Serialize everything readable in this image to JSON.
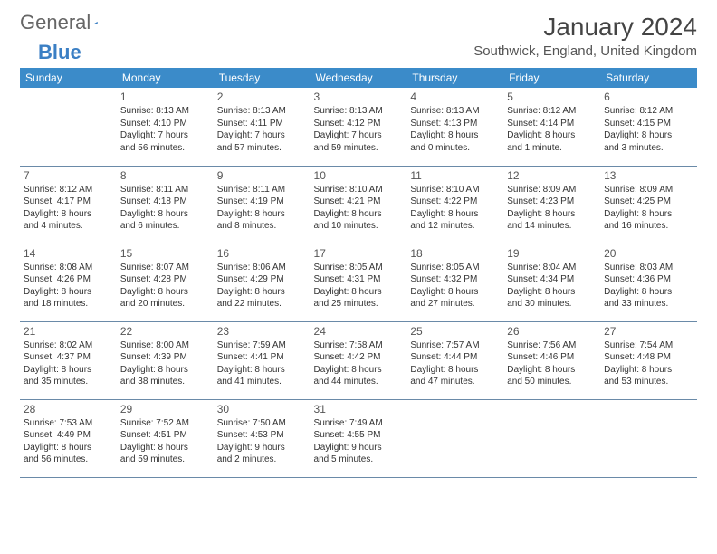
{
  "logo": {
    "textA": "General",
    "textB": "Blue"
  },
  "title": "January 2024",
  "location": "Southwick, England, United Kingdom",
  "colors": {
    "headerBg": "#3b8bc9",
    "headerText": "#ffffff",
    "rowBorder": "#6a8aa8",
    "logoBlue": "#3b7fc4",
    "bodyText": "#333333"
  },
  "dayHeaders": [
    "Sunday",
    "Monday",
    "Tuesday",
    "Wednesday",
    "Thursday",
    "Friday",
    "Saturday"
  ],
  "weeks": [
    [
      null,
      {
        "n": "1",
        "sr": "Sunrise: 8:13 AM",
        "ss": "Sunset: 4:10 PM",
        "d1": "Daylight: 7 hours",
        "d2": "and 56 minutes."
      },
      {
        "n": "2",
        "sr": "Sunrise: 8:13 AM",
        "ss": "Sunset: 4:11 PM",
        "d1": "Daylight: 7 hours",
        "d2": "and 57 minutes."
      },
      {
        "n": "3",
        "sr": "Sunrise: 8:13 AM",
        "ss": "Sunset: 4:12 PM",
        "d1": "Daylight: 7 hours",
        "d2": "and 59 minutes."
      },
      {
        "n": "4",
        "sr": "Sunrise: 8:13 AM",
        "ss": "Sunset: 4:13 PM",
        "d1": "Daylight: 8 hours",
        "d2": "and 0 minutes."
      },
      {
        "n": "5",
        "sr": "Sunrise: 8:12 AM",
        "ss": "Sunset: 4:14 PM",
        "d1": "Daylight: 8 hours",
        "d2": "and 1 minute."
      },
      {
        "n": "6",
        "sr": "Sunrise: 8:12 AM",
        "ss": "Sunset: 4:15 PM",
        "d1": "Daylight: 8 hours",
        "d2": "and 3 minutes."
      }
    ],
    [
      {
        "n": "7",
        "sr": "Sunrise: 8:12 AM",
        "ss": "Sunset: 4:17 PM",
        "d1": "Daylight: 8 hours",
        "d2": "and 4 minutes."
      },
      {
        "n": "8",
        "sr": "Sunrise: 8:11 AM",
        "ss": "Sunset: 4:18 PM",
        "d1": "Daylight: 8 hours",
        "d2": "and 6 minutes."
      },
      {
        "n": "9",
        "sr": "Sunrise: 8:11 AM",
        "ss": "Sunset: 4:19 PM",
        "d1": "Daylight: 8 hours",
        "d2": "and 8 minutes."
      },
      {
        "n": "10",
        "sr": "Sunrise: 8:10 AM",
        "ss": "Sunset: 4:21 PM",
        "d1": "Daylight: 8 hours",
        "d2": "and 10 minutes."
      },
      {
        "n": "11",
        "sr": "Sunrise: 8:10 AM",
        "ss": "Sunset: 4:22 PM",
        "d1": "Daylight: 8 hours",
        "d2": "and 12 minutes."
      },
      {
        "n": "12",
        "sr": "Sunrise: 8:09 AM",
        "ss": "Sunset: 4:23 PM",
        "d1": "Daylight: 8 hours",
        "d2": "and 14 minutes."
      },
      {
        "n": "13",
        "sr": "Sunrise: 8:09 AM",
        "ss": "Sunset: 4:25 PM",
        "d1": "Daylight: 8 hours",
        "d2": "and 16 minutes."
      }
    ],
    [
      {
        "n": "14",
        "sr": "Sunrise: 8:08 AM",
        "ss": "Sunset: 4:26 PM",
        "d1": "Daylight: 8 hours",
        "d2": "and 18 minutes."
      },
      {
        "n": "15",
        "sr": "Sunrise: 8:07 AM",
        "ss": "Sunset: 4:28 PM",
        "d1": "Daylight: 8 hours",
        "d2": "and 20 minutes."
      },
      {
        "n": "16",
        "sr": "Sunrise: 8:06 AM",
        "ss": "Sunset: 4:29 PM",
        "d1": "Daylight: 8 hours",
        "d2": "and 22 minutes."
      },
      {
        "n": "17",
        "sr": "Sunrise: 8:05 AM",
        "ss": "Sunset: 4:31 PM",
        "d1": "Daylight: 8 hours",
        "d2": "and 25 minutes."
      },
      {
        "n": "18",
        "sr": "Sunrise: 8:05 AM",
        "ss": "Sunset: 4:32 PM",
        "d1": "Daylight: 8 hours",
        "d2": "and 27 minutes."
      },
      {
        "n": "19",
        "sr": "Sunrise: 8:04 AM",
        "ss": "Sunset: 4:34 PM",
        "d1": "Daylight: 8 hours",
        "d2": "and 30 minutes."
      },
      {
        "n": "20",
        "sr": "Sunrise: 8:03 AM",
        "ss": "Sunset: 4:36 PM",
        "d1": "Daylight: 8 hours",
        "d2": "and 33 minutes."
      }
    ],
    [
      {
        "n": "21",
        "sr": "Sunrise: 8:02 AM",
        "ss": "Sunset: 4:37 PM",
        "d1": "Daylight: 8 hours",
        "d2": "and 35 minutes."
      },
      {
        "n": "22",
        "sr": "Sunrise: 8:00 AM",
        "ss": "Sunset: 4:39 PM",
        "d1": "Daylight: 8 hours",
        "d2": "and 38 minutes."
      },
      {
        "n": "23",
        "sr": "Sunrise: 7:59 AM",
        "ss": "Sunset: 4:41 PM",
        "d1": "Daylight: 8 hours",
        "d2": "and 41 minutes."
      },
      {
        "n": "24",
        "sr": "Sunrise: 7:58 AM",
        "ss": "Sunset: 4:42 PM",
        "d1": "Daylight: 8 hours",
        "d2": "and 44 minutes."
      },
      {
        "n": "25",
        "sr": "Sunrise: 7:57 AM",
        "ss": "Sunset: 4:44 PM",
        "d1": "Daylight: 8 hours",
        "d2": "and 47 minutes."
      },
      {
        "n": "26",
        "sr": "Sunrise: 7:56 AM",
        "ss": "Sunset: 4:46 PM",
        "d1": "Daylight: 8 hours",
        "d2": "and 50 minutes."
      },
      {
        "n": "27",
        "sr": "Sunrise: 7:54 AM",
        "ss": "Sunset: 4:48 PM",
        "d1": "Daylight: 8 hours",
        "d2": "and 53 minutes."
      }
    ],
    [
      {
        "n": "28",
        "sr": "Sunrise: 7:53 AM",
        "ss": "Sunset: 4:49 PM",
        "d1": "Daylight: 8 hours",
        "d2": "and 56 minutes."
      },
      {
        "n": "29",
        "sr": "Sunrise: 7:52 AM",
        "ss": "Sunset: 4:51 PM",
        "d1": "Daylight: 8 hours",
        "d2": "and 59 minutes."
      },
      {
        "n": "30",
        "sr": "Sunrise: 7:50 AM",
        "ss": "Sunset: 4:53 PM",
        "d1": "Daylight: 9 hours",
        "d2": "and 2 minutes."
      },
      {
        "n": "31",
        "sr": "Sunrise: 7:49 AM",
        "ss": "Sunset: 4:55 PM",
        "d1": "Daylight: 9 hours",
        "d2": "and 5 minutes."
      },
      null,
      null,
      null
    ]
  ]
}
